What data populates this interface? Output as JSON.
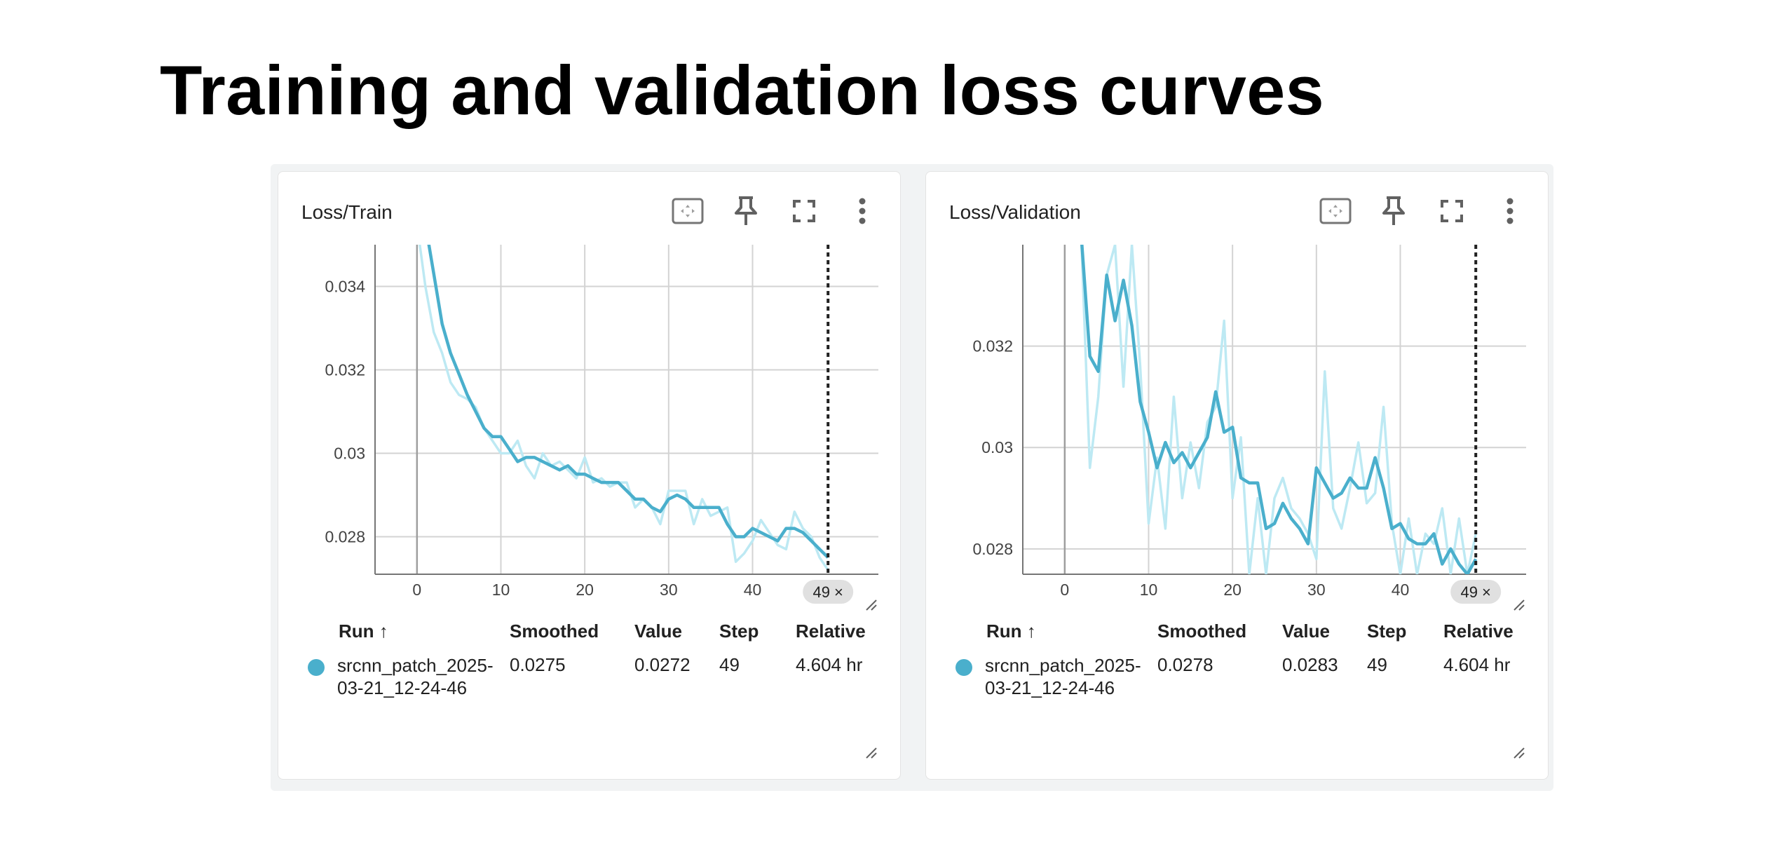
{
  "title": "Training and validation loss curves",
  "colors": {
    "smoothed": "#4aafcc",
    "raw": "#bde9f3",
    "grid": "#d3d3d3",
    "dot": "#4aafcc"
  },
  "icons": [
    "fit-domain-icon",
    "pin-icon",
    "fullscreen-icon",
    "more-vert-icon"
  ],
  "chart_data": [
    {
      "type": "line",
      "title": "Loss/Train",
      "xlim": [
        -5,
        55
      ],
      "ylim": [
        0.0271,
        0.035
      ],
      "xticks": [
        0,
        10,
        20,
        30,
        40
      ],
      "yticks": [
        0.028,
        0.03,
        0.032,
        0.034
      ],
      "ytick_labels": [
        "0.028",
        "0.03",
        "0.032",
        "0.034"
      ],
      "grid": true,
      "step_marker": {
        "step": 49,
        "label": "49 ×"
      },
      "series": [
        {
          "values": [
            0.0355,
            0.034,
            0.0329,
            0.0324,
            0.0317,
            0.0314,
            0.0313,
            0.0311,
            0.0306,
            0.0303,
            0.03,
            0.03,
            0.0303,
            0.0297,
            0.0294,
            0.03,
            0.0297,
            0.0298,
            0.0296,
            0.0294,
            0.0299,
            0.0293,
            0.0294,
            0.0292,
            0.0293,
            0.0293,
            0.0287,
            0.0289,
            0.0287,
            0.0283,
            0.0291,
            0.0291,
            0.0291,
            0.0283,
            0.0289,
            0.0285,
            0.0286,
            0.0287,
            0.0274,
            0.0276,
            0.0279,
            0.0284,
            0.0281,
            0.0278,
            0.0277,
            0.0286,
            0.0282,
            0.028,
            0.0275,
            0.0272
          ]
        },
        {
          "values": [
            0.0355,
            0.0355,
            0.0343,
            0.0331,
            0.0324,
            0.0319,
            0.0314,
            0.031,
            0.0306,
            0.0304,
            0.0304,
            0.0301,
            0.0298,
            0.0299,
            0.0299,
            0.0298,
            0.0297,
            0.0296,
            0.0297,
            0.0295,
            0.0295,
            0.0294,
            0.0293,
            0.0293,
            0.0293,
            0.0291,
            0.0289,
            0.0289,
            0.0287,
            0.0286,
            0.0289,
            0.029,
            0.0289,
            0.0287,
            0.0287,
            0.0287,
            0.0287,
            0.0283,
            0.028,
            0.028,
            0.0282,
            0.0281,
            0.028,
            0.0279,
            0.0282,
            0.0282,
            0.0281,
            0.0279,
            0.0277,
            0.0275
          ]
        }
      ]
    },
    {
      "type": "line",
      "title": "Loss/Validation",
      "xlim": [
        -5,
        55
      ],
      "ylim": [
        0.0275,
        0.034
      ],
      "xticks": [
        0,
        10,
        20,
        30,
        40
      ],
      "yticks": [
        0.028,
        0.03,
        0.032
      ],
      "ytick_labels": [
        "0.028",
        "0.03",
        "0.032"
      ],
      "grid": true,
      "step_marker": {
        "step": 49,
        "label": "49 ×"
      },
      "series": [
        {
          "values": [
            0.0355,
            0.0343,
            0.034,
            0.0296,
            0.031,
            0.0334,
            0.034,
            0.0312,
            0.034,
            0.0316,
            0.0285,
            0.0298,
            0.0284,
            0.031,
            0.029,
            0.0301,
            0.0292,
            0.0305,
            0.0308,
            0.0325,
            0.029,
            0.0302,
            0.0275,
            0.029,
            0.0275,
            0.029,
            0.0294,
            0.0288,
            0.0286,
            0.0283,
            0.0278,
            0.0315,
            0.0288,
            0.0284,
            0.0292,
            0.0301,
            0.0289,
            0.0291,
            0.0308,
            0.0285,
            0.0275,
            0.0286,
            0.0275,
            0.0283,
            0.0281,
            0.0288,
            0.0275,
            0.0286,
            0.0275,
            0.0283
          ]
        },
        {
          "values": [
            0.0355,
            0.035,
            0.0341,
            0.0318,
            0.0315,
            0.0334,
            0.0325,
            0.0333,
            0.0324,
            0.0309,
            0.0303,
            0.0296,
            0.0301,
            0.0297,
            0.0299,
            0.0296,
            0.0299,
            0.0302,
            0.0311,
            0.0303,
            0.0304,
            0.0294,
            0.0293,
            0.0293,
            0.0284,
            0.0285,
            0.0289,
            0.0286,
            0.0284,
            0.0281,
            0.0296,
            0.0293,
            0.029,
            0.0291,
            0.0294,
            0.0292,
            0.0292,
            0.0298,
            0.0292,
            0.0284,
            0.0285,
            0.0282,
            0.0281,
            0.0281,
            0.0283,
            0.0277,
            0.028,
            0.0277,
            0.0275,
            0.0278
          ]
        }
      ]
    }
  ],
  "cards": [
    {
      "title": "Loss/Train",
      "table": {
        "headers": {
          "run": "Run ↑",
          "smoothed": "Smoothed",
          "value": "Value",
          "step": "Step",
          "relative": "Relative"
        },
        "row": {
          "run": "srcnn_patch_2025-03-21_12-24-46",
          "smoothed": "0.0275",
          "value": "0.0272",
          "step": "49",
          "relative": "4.604 hr"
        }
      }
    },
    {
      "title": "Loss/Validation",
      "table": {
        "headers": {
          "run": "Run ↑",
          "smoothed": "Smoothed",
          "value": "Value",
          "step": "Step",
          "relative": "Relative"
        },
        "row": {
          "run": "srcnn_patch_2025-03-21_12-24-46",
          "smoothed": "0.0278",
          "value": "0.0283",
          "step": "49",
          "relative": "4.604 hr"
        }
      }
    }
  ]
}
